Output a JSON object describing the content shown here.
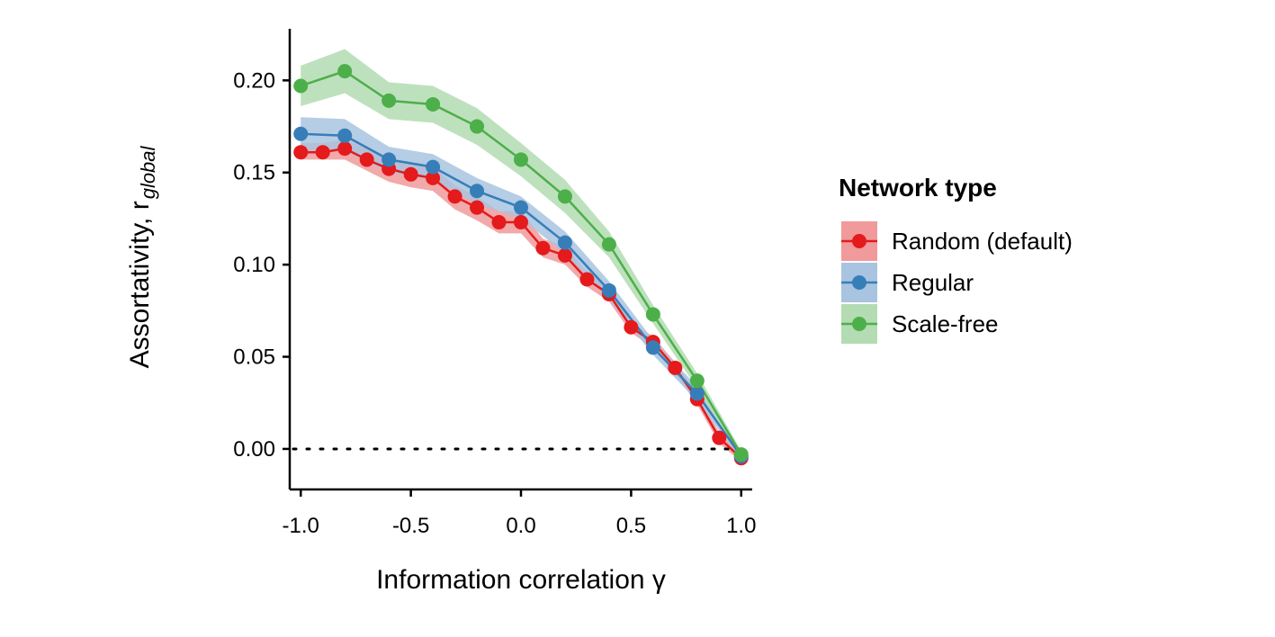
{
  "chart_data": {
    "type": "line",
    "xlabel": "Information correlation γ",
    "ylabel_main": "Assortativity, r",
    "ylabel_sub": "global",
    "xlim": [
      -1.05,
      1.05
    ],
    "ylim": [
      -0.022,
      0.228
    ],
    "x_ticks": [
      -1.0,
      -0.5,
      0.0,
      0.5,
      1.0
    ],
    "x_tick_labels": [
      "-1.0",
      "-0.5",
      "0.0",
      "0.5",
      "1.0"
    ],
    "y_ticks": [
      0.0,
      0.05,
      0.1,
      0.15,
      0.2
    ],
    "y_tick_labels": [
      "0.00",
      "0.05",
      "0.10",
      "0.15",
      "0.20"
    ],
    "reference_line": {
      "y": 0.0,
      "style": "dotted"
    },
    "legend": {
      "title": "Network type",
      "placement": "right"
    },
    "series": [
      {
        "name": "Random (default)",
        "color": "#e41a1c",
        "band_color": "#f09a9b",
        "x": [
          -1.0,
          -0.9,
          -0.8,
          -0.7,
          -0.6,
          -0.5,
          -0.4,
          -0.3,
          -0.2,
          -0.1,
          0.0,
          0.1,
          0.2,
          0.3,
          0.4,
          0.5,
          0.6,
          0.7,
          0.8,
          0.9,
          1.0
        ],
        "y": [
          0.161,
          0.161,
          0.163,
          0.157,
          0.152,
          0.149,
          0.147,
          0.137,
          0.131,
          0.123,
          0.123,
          0.109,
          0.105,
          0.092,
          0.084,
          0.066,
          0.058,
          0.044,
          0.027,
          0.006,
          -0.005
        ],
        "band_lower": [
          0.157,
          0.157,
          0.157,
          0.151,
          0.145,
          0.142,
          0.14,
          0.13,
          0.124,
          0.117,
          0.117,
          0.104,
          0.1,
          0.088,
          0.08,
          0.063,
          0.055,
          0.041,
          0.024,
          0.003,
          -0.007
        ],
        "band_upper": [
          0.166,
          0.166,
          0.168,
          0.163,
          0.158,
          0.155,
          0.153,
          0.143,
          0.137,
          0.129,
          0.129,
          0.114,
          0.11,
          0.096,
          0.088,
          0.069,
          0.061,
          0.047,
          0.03,
          0.009,
          -0.003
        ]
      },
      {
        "name": "Regular",
        "color": "#377eb8",
        "band_color": "#a8c4e0",
        "x": [
          -1.0,
          -0.8,
          -0.6,
          -0.4,
          -0.2,
          0.0,
          0.2,
          0.4,
          0.6,
          0.8,
          1.0
        ],
        "y": [
          0.171,
          0.17,
          0.157,
          0.153,
          0.14,
          0.131,
          0.112,
          0.086,
          0.055,
          0.03,
          -0.004
        ],
        "band_lower": [
          0.162,
          0.162,
          0.15,
          0.146,
          0.133,
          0.125,
          0.106,
          0.081,
          0.051,
          0.026,
          -0.006
        ],
        "band_upper": [
          0.18,
          0.179,
          0.164,
          0.16,
          0.147,
          0.137,
          0.118,
          0.091,
          0.059,
          0.034,
          -0.002
        ]
      },
      {
        "name": "Scale-free",
        "color": "#4daf4a",
        "band_color": "#b3dcb2",
        "x": [
          -1.0,
          -0.8,
          -0.6,
          -0.4,
          -0.2,
          0.0,
          0.2,
          0.4,
          0.6,
          0.8,
          1.0
        ],
        "y": [
          0.197,
          0.205,
          0.189,
          0.187,
          0.175,
          0.157,
          0.137,
          0.111,
          0.073,
          0.037,
          -0.003
        ],
        "band_lower": [
          0.186,
          0.193,
          0.179,
          0.177,
          0.165,
          0.148,
          0.128,
          0.104,
          0.068,
          0.033,
          -0.005
        ],
        "band_upper": [
          0.208,
          0.217,
          0.199,
          0.197,
          0.185,
          0.166,
          0.146,
          0.118,
          0.078,
          0.041,
          -0.001
        ]
      }
    ]
  }
}
